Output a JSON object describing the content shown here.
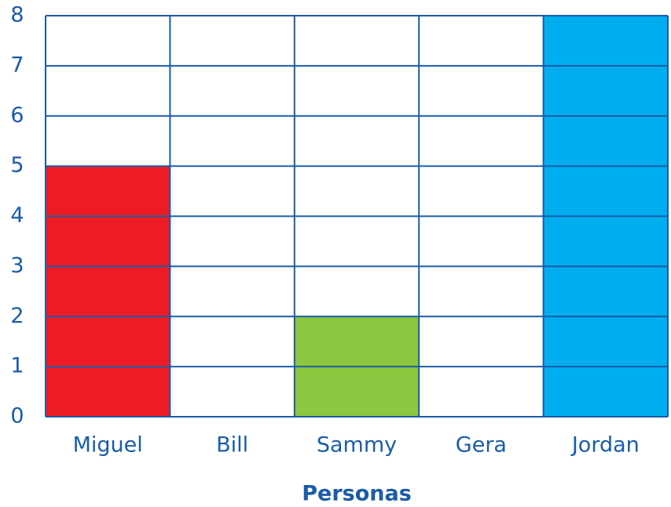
{
  "chart_data": {
    "type": "bar",
    "xlabel": "Personas",
    "categories": [
      "Miguel",
      "Bill",
      "Sammy",
      "Gera",
      "Jordan"
    ],
    "values": [
      5,
      0,
      2,
      0,
      8
    ],
    "colors": [
      "#ed1c24",
      null,
      "#8dc63f",
      null,
      "#00aeef"
    ],
    "ylim": [
      0,
      8
    ],
    "yticks": [
      0,
      1,
      2,
      3,
      4,
      5,
      6,
      7,
      8
    ],
    "grid": true
  }
}
